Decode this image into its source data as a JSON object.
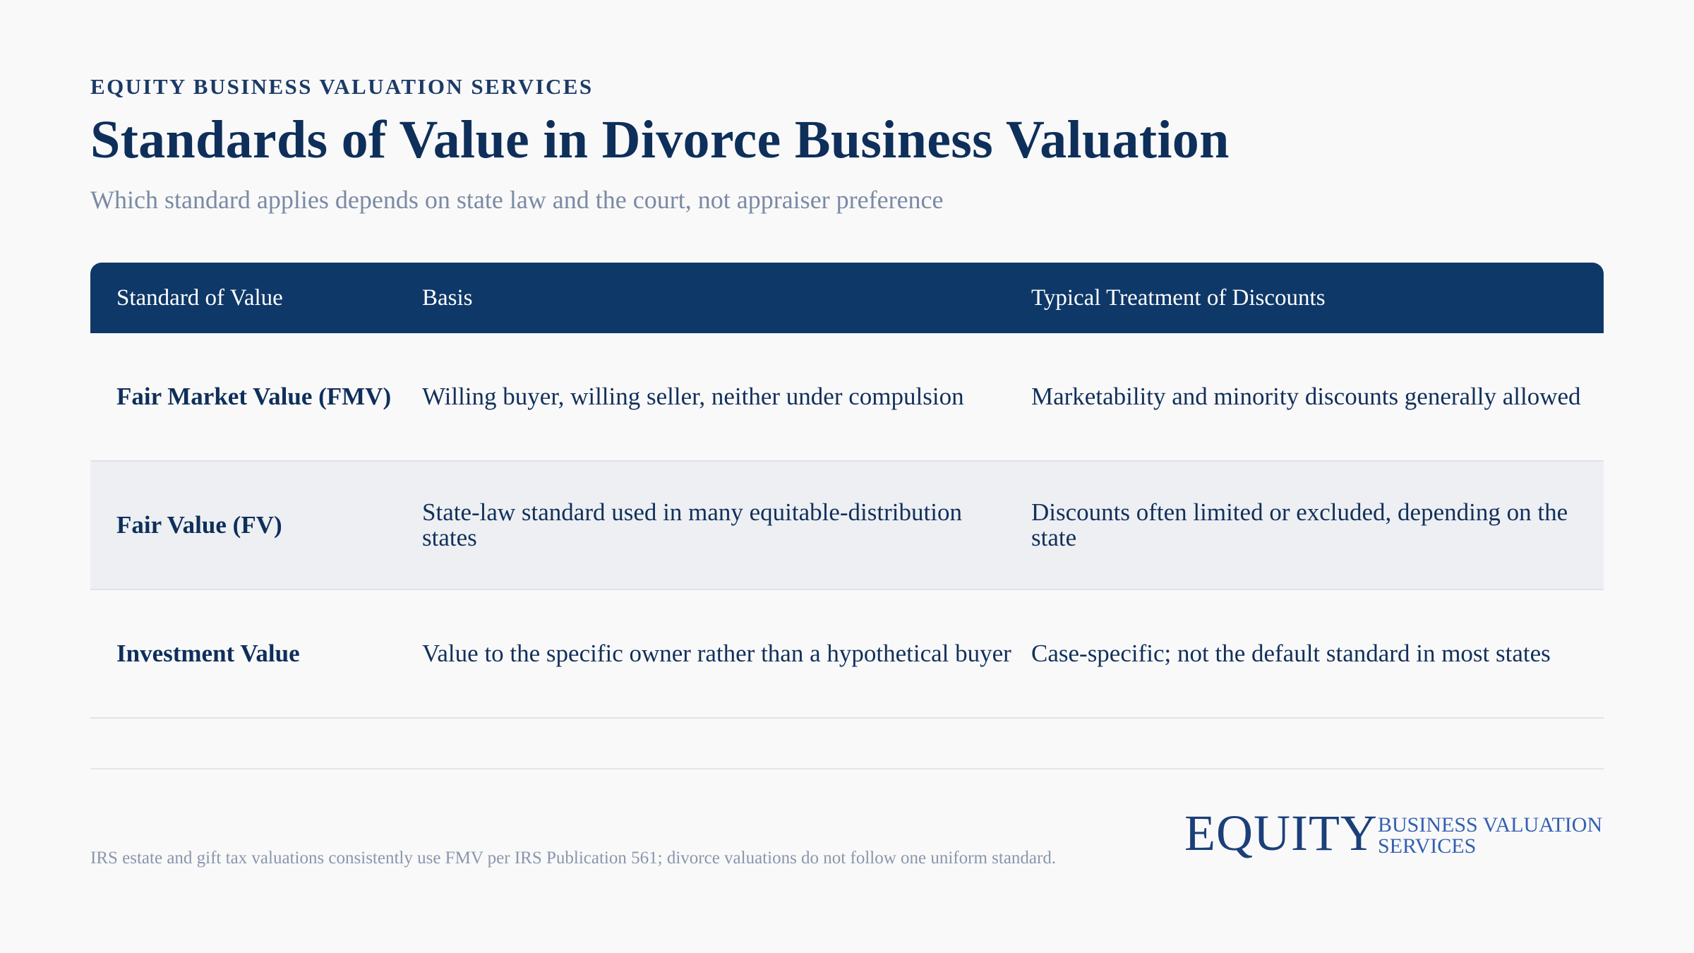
{
  "header": {
    "eyebrow": "EQUITY BUSINESS VALUATION SERVICES",
    "title": "Standards of Value in Divorce Business Valuation",
    "subtitle": "Which standard applies depends on state law and the court, not appraiser preference"
  },
  "table": {
    "columns": [
      "Standard of Value",
      "Basis",
      "Typical Treatment of Discounts"
    ],
    "rows": [
      {
        "standard": "Fair Market Value (FMV)",
        "basis": "Willing buyer, willing seller, neither under compulsion",
        "discounts": "Marketability and minority discounts generally allowed"
      },
      {
        "standard": "Fair Value (FV)",
        "basis": "State-law standard used in many equitable-distribution states",
        "discounts": "Discounts often limited or excluded, depending on the state"
      },
      {
        "standard": "Investment Value",
        "basis": "Value to the specific owner rather than a hypothetical buyer",
        "discounts": "Case-specific; not the default standard in most states"
      }
    ]
  },
  "footer": {
    "note": "IRS estate and gift tax valuations consistently use FMV per IRS Publication 561; divorce valuations do not follow one uniform standard.",
    "logo": {
      "main": "EQUITY",
      "sub_line1": "BUSINESS VALUATION",
      "sub_line2": "SERVICES"
    }
  },
  "colors": {
    "header_bg": "#0e3868",
    "title": "#0e2f5a",
    "subtitle": "#7b8aa3",
    "alt_row": "#edeff3",
    "logo_accent": "#3460b0"
  }
}
